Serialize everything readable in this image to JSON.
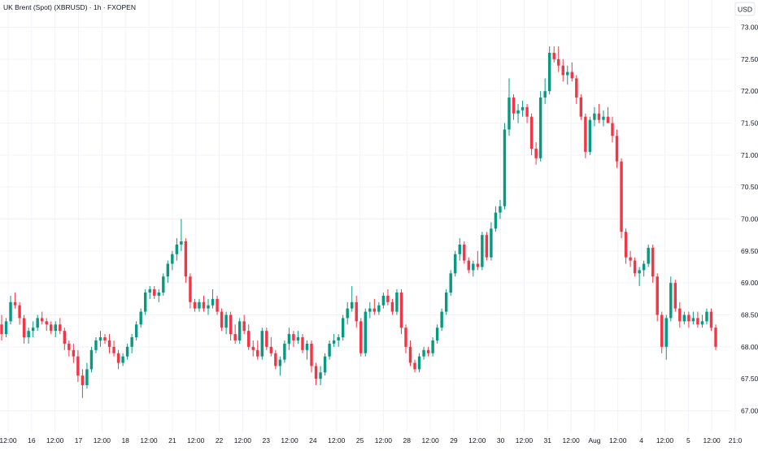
{
  "header": {
    "title": "UK Brent (Spot) (XBRUSD) · 1h · FXOPEN",
    "currency": "USD"
  },
  "chart_data": {
    "type": "candlestick",
    "title": "UK Brent (Spot) (XBRUSD) · 1h · FXOPEN",
    "ylim": [
      66.8,
      73.1
    ],
    "y_ticks": [
      "73.00",
      "72.50",
      "72.00",
      "71.50",
      "71.00",
      "70.50",
      "70.00",
      "69.50",
      "69.00",
      "68.50",
      "68.00",
      "67.50",
      "67.00"
    ],
    "x_ticks": [
      "12:00",
      "16",
      "12:00",
      "17",
      "12:00",
      "18",
      "12:00",
      "21",
      "12:00",
      "22",
      "12:00",
      "23",
      "12:00",
      "24",
      "12:00",
      "25",
      "12:00",
      "28",
      "12:00",
      "29",
      "12:00",
      "30",
      "12:00",
      "31",
      "12:00",
      "Aug",
      "12:00",
      "4",
      "12:00",
      "5",
      "12:00",
      "21:0"
    ],
    "grid": true,
    "up_color": "#089981",
    "down_color": "#f23645",
    "ohlc": [
      [
        68.35,
        68.5,
        68.1,
        68.2
      ],
      [
        68.2,
        68.45,
        68.15,
        68.4
      ],
      [
        68.4,
        68.8,
        68.35,
        68.7
      ],
      [
        68.7,
        68.85,
        68.6,
        68.65
      ],
      [
        68.65,
        68.7,
        68.35,
        68.45
      ],
      [
        68.45,
        68.5,
        68.05,
        68.15
      ],
      [
        68.15,
        68.3,
        68.05,
        68.25
      ],
      [
        68.25,
        68.4,
        68.15,
        68.3
      ],
      [
        68.3,
        68.5,
        68.25,
        68.45
      ],
      [
        68.45,
        68.55,
        68.35,
        68.4
      ],
      [
        68.4,
        68.45,
        68.25,
        68.35
      ],
      [
        68.35,
        68.4,
        68.2,
        68.25
      ],
      [
        68.25,
        68.4,
        68.15,
        68.35
      ],
      [
        68.35,
        68.45,
        68.2,
        68.25
      ],
      [
        68.25,
        68.3,
        67.95,
        68.05
      ],
      [
        68.05,
        68.1,
        67.85,
        67.95
      ],
      [
        67.95,
        68.05,
        67.75,
        67.85
      ],
      [
        67.85,
        67.95,
        67.45,
        67.55
      ],
      [
        67.55,
        67.65,
        67.2,
        67.4
      ],
      [
        67.4,
        67.75,
        67.35,
        67.65
      ],
      [
        67.65,
        68.0,
        67.6,
        67.95
      ],
      [
        67.95,
        68.15,
        67.9,
        68.1
      ],
      [
        68.1,
        68.25,
        68.0,
        68.15
      ],
      [
        68.15,
        68.2,
        68.05,
        68.1
      ],
      [
        68.1,
        68.2,
        67.9,
        68.0
      ],
      [
        68.0,
        68.1,
        67.85,
        67.9
      ],
      [
        67.9,
        67.95,
        67.65,
        67.75
      ],
      [
        67.75,
        67.9,
        67.7,
        67.85
      ],
      [
        67.85,
        68.05,
        67.8,
        68.0
      ],
      [
        68.0,
        68.2,
        67.9,
        68.15
      ],
      [
        68.15,
        68.4,
        68.1,
        68.35
      ],
      [
        68.35,
        68.6,
        68.3,
        68.55
      ],
      [
        68.55,
        68.9,
        68.5,
        68.85
      ],
      [
        68.85,
        68.95,
        68.75,
        68.9
      ],
      [
        68.9,
        68.95,
        68.75,
        68.8
      ],
      [
        68.8,
        68.9,
        68.7,
        68.85
      ],
      [
        68.85,
        69.15,
        68.8,
        69.1
      ],
      [
        69.1,
        69.35,
        69.0,
        69.3
      ],
      [
        69.3,
        69.5,
        69.2,
        69.45
      ],
      [
        69.45,
        69.7,
        69.35,
        69.6
      ],
      [
        69.6,
        70.0,
        69.5,
        69.65
      ],
      [
        69.65,
        69.7,
        69.0,
        69.1
      ],
      [
        69.1,
        69.15,
        68.6,
        68.7
      ],
      [
        68.7,
        68.75,
        68.55,
        68.6
      ],
      [
        68.6,
        68.75,
        68.55,
        68.7
      ],
      [
        68.7,
        68.8,
        68.55,
        68.6
      ],
      [
        68.6,
        68.75,
        68.5,
        68.65
      ],
      [
        68.65,
        68.9,
        68.6,
        68.75
      ],
      [
        68.75,
        68.8,
        68.5,
        68.55
      ],
      [
        68.55,
        68.6,
        68.25,
        68.3
      ],
      [
        68.3,
        68.55,
        68.2,
        68.5
      ],
      [
        68.5,
        68.55,
        68.1,
        68.2
      ],
      [
        68.2,
        68.35,
        68.05,
        68.1
      ],
      [
        68.1,
        68.45,
        68.05,
        68.4
      ],
      [
        68.4,
        68.5,
        68.2,
        68.25
      ],
      [
        68.25,
        68.35,
        67.95,
        68.0
      ],
      [
        68.0,
        68.1,
        67.85,
        67.95
      ],
      [
        67.95,
        68.1,
        67.8,
        67.85
      ],
      [
        67.85,
        68.3,
        67.8,
        68.25
      ],
      [
        68.25,
        68.3,
        67.95,
        68.0
      ],
      [
        68.0,
        68.15,
        67.85,
        67.9
      ],
      [
        67.9,
        67.95,
        67.65,
        67.7
      ],
      [
        67.7,
        67.85,
        67.55,
        67.8
      ],
      [
        67.8,
        68.1,
        67.75,
        68.05
      ],
      [
        68.05,
        68.3,
        67.95,
        68.2
      ],
      [
        68.2,
        68.25,
        68.0,
        68.1
      ],
      [
        68.1,
        68.25,
        68.05,
        68.15
      ],
      [
        68.15,
        68.2,
        67.9,
        67.95
      ],
      [
        67.95,
        68.1,
        67.8,
        68.05
      ],
      [
        68.05,
        68.1,
        67.6,
        67.7
      ],
      [
        67.7,
        67.75,
        67.4,
        67.5
      ],
      [
        67.5,
        67.7,
        67.4,
        67.6
      ],
      [
        67.6,
        67.9,
        67.55,
        67.85
      ],
      [
        67.85,
        68.1,
        67.8,
        68.05
      ],
      [
        68.05,
        68.2,
        68.0,
        68.1
      ],
      [
        68.1,
        68.2,
        68.0,
        68.15
      ],
      [
        68.15,
        68.5,
        68.1,
        68.45
      ],
      [
        68.45,
        68.7,
        68.35,
        68.6
      ],
      [
        68.6,
        68.95,
        68.55,
        68.7
      ],
      [
        68.7,
        68.8,
        68.3,
        68.4
      ],
      [
        68.4,
        68.45,
        67.85,
        67.9
      ],
      [
        67.9,
        68.6,
        67.85,
        68.55
      ],
      [
        68.55,
        68.7,
        68.45,
        68.6
      ],
      [
        68.6,
        68.75,
        68.5,
        68.55
      ],
      [
        68.55,
        68.7,
        68.5,
        68.65
      ],
      [
        68.65,
        68.85,
        68.6,
        68.8
      ],
      [
        68.8,
        68.9,
        68.65,
        68.7
      ],
      [
        68.7,
        68.75,
        68.5,
        68.55
      ],
      [
        68.55,
        68.9,
        68.5,
        68.85
      ],
      [
        68.85,
        68.9,
        68.2,
        68.3
      ],
      [
        68.3,
        68.35,
        67.9,
        68.0
      ],
      [
        68.0,
        68.1,
        67.7,
        67.75
      ],
      [
        67.75,
        67.8,
        67.6,
        67.65
      ],
      [
        67.65,
        67.9,
        67.6,
        67.85
      ],
      [
        67.85,
        68.0,
        67.8,
        67.95
      ],
      [
        67.95,
        68.0,
        67.85,
        67.9
      ],
      [
        67.9,
        68.15,
        67.85,
        68.1
      ],
      [
        68.1,
        68.35,
        68.05,
        68.3
      ],
      [
        68.3,
        68.6,
        68.25,
        68.55
      ],
      [
        68.55,
        68.9,
        68.5,
        68.85
      ],
      [
        68.85,
        69.2,
        68.8,
        69.15
      ],
      [
        69.15,
        69.5,
        69.1,
        69.45
      ],
      [
        69.45,
        69.7,
        69.35,
        69.6
      ],
      [
        69.6,
        69.65,
        69.3,
        69.35
      ],
      [
        69.35,
        69.4,
        69.15,
        69.2
      ],
      [
        69.2,
        69.35,
        69.1,
        69.3
      ],
      [
        69.3,
        69.5,
        69.2,
        69.25
      ],
      [
        69.25,
        69.8,
        69.2,
        69.75
      ],
      [
        69.75,
        69.8,
        69.35,
        69.4
      ],
      [
        69.4,
        69.95,
        69.35,
        69.85
      ],
      [
        69.85,
        70.2,
        69.8,
        70.1
      ],
      [
        70.1,
        70.3,
        70.0,
        70.2
      ],
      [
        70.2,
        71.5,
        70.15,
        71.4
      ],
      [
        71.4,
        72.2,
        71.3,
        71.9
      ],
      [
        71.9,
        71.95,
        71.55,
        71.65
      ],
      [
        71.65,
        71.8,
        71.5,
        71.7
      ],
      [
        71.7,
        71.85,
        71.6,
        71.75
      ],
      [
        71.75,
        71.8,
        71.5,
        71.6
      ],
      [
        71.6,
        71.65,
        71.0,
        71.1
      ],
      [
        71.1,
        71.2,
        70.85,
        70.95
      ],
      [
        70.95,
        72.0,
        70.9,
        71.9
      ],
      [
        71.9,
        72.2,
        71.8,
        72.0
      ],
      [
        72.0,
        72.7,
        71.95,
        72.6
      ],
      [
        72.6,
        72.7,
        72.45,
        72.5
      ],
      [
        72.5,
        72.7,
        72.3,
        72.4
      ],
      [
        72.4,
        72.5,
        72.15,
        72.25
      ],
      [
        72.25,
        72.4,
        72.1,
        72.3
      ],
      [
        72.3,
        72.45,
        72.15,
        72.2
      ],
      [
        72.2,
        72.25,
        71.8,
        71.9
      ],
      [
        71.9,
        71.95,
        71.55,
        71.6
      ],
      [
        71.6,
        71.65,
        70.95,
        71.05
      ],
      [
        71.05,
        71.6,
        71.0,
        71.55
      ],
      [
        71.55,
        71.75,
        71.45,
        71.65
      ],
      [
        71.65,
        71.8,
        71.5,
        71.55
      ],
      [
        71.55,
        71.7,
        71.45,
        71.6
      ],
      [
        71.6,
        71.75,
        71.5,
        71.5
      ],
      [
        71.5,
        71.6,
        71.2,
        71.3
      ],
      [
        71.3,
        71.4,
        70.8,
        70.9
      ],
      [
        70.9,
        70.95,
        69.7,
        69.8
      ],
      [
        69.8,
        69.85,
        69.3,
        69.4
      ],
      [
        69.4,
        69.5,
        69.25,
        69.35
      ],
      [
        69.35,
        69.4,
        69.1,
        69.15
      ],
      [
        69.15,
        69.25,
        68.95,
        69.2
      ],
      [
        69.2,
        69.35,
        69.1,
        69.3
      ],
      [
        69.3,
        69.6,
        69.25,
        69.55
      ],
      [
        69.55,
        69.6,
        69.0,
        69.1
      ],
      [
        69.1,
        69.15,
        68.4,
        68.5
      ],
      [
        68.5,
        68.55,
        67.9,
        68.0
      ],
      [
        68.0,
        68.5,
        67.8,
        68.45
      ],
      [
        68.45,
        69.1,
        68.4,
        69.0
      ],
      [
        69.0,
        69.05,
        68.55,
        68.6
      ],
      [
        68.6,
        68.7,
        68.3,
        68.4
      ],
      [
        68.4,
        68.55,
        68.35,
        68.5
      ],
      [
        68.5,
        68.55,
        68.3,
        68.4
      ],
      [
        68.4,
        68.55,
        68.35,
        68.45
      ],
      [
        68.45,
        68.55,
        68.3,
        68.35
      ],
      [
        68.35,
        68.5,
        68.3,
        68.4
      ],
      [
        68.4,
        68.6,
        68.35,
        68.55
      ],
      [
        68.55,
        68.6,
        68.25,
        68.3
      ],
      [
        68.3,
        68.35,
        67.95,
        68.0
      ]
    ]
  }
}
